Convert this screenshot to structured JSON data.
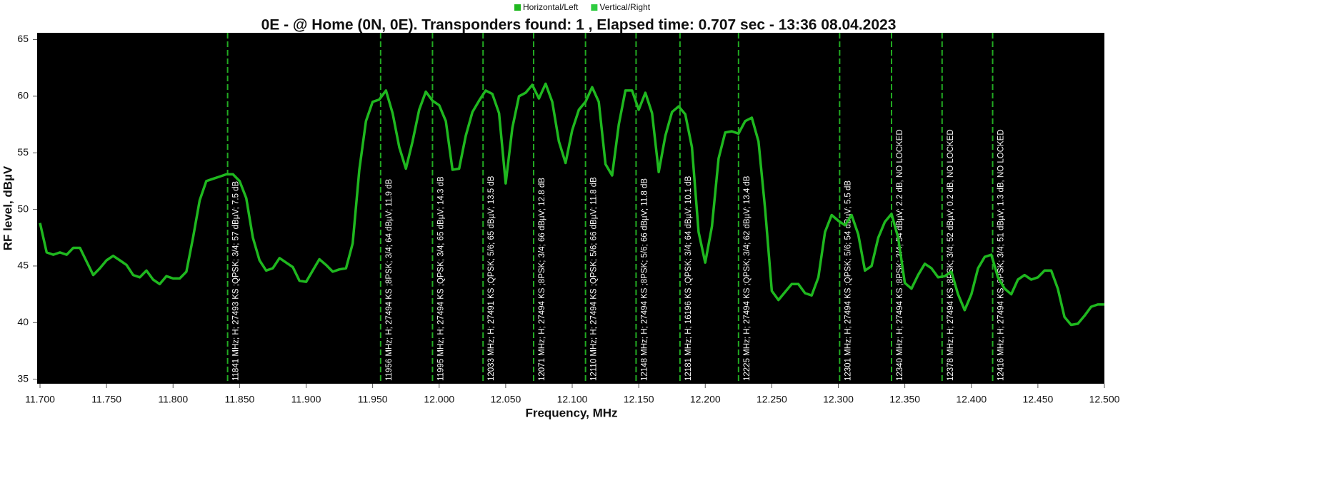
{
  "chart_data": {
    "type": "line",
    "title": "0E -  @ Home (0N, 0E). Transponders found: 1 , Elapsed time: 0.707 sec - 13:36 08.04.2023",
    "x_label": "Frequency, MHz",
    "y_label": "RF level, dBµV",
    "xlim": [
      11.7,
      12.5
    ],
    "ylim": [
      34.6,
      65.6
    ],
    "xticks": [
      {
        "value": 11.7,
        "label": "11.700"
      },
      {
        "value": 11.75,
        "label": "11.750"
      },
      {
        "value": 11.8,
        "label": "11.800"
      },
      {
        "value": 11.85,
        "label": "11.850"
      },
      {
        "value": 11.9,
        "label": "11.900"
      },
      {
        "value": 11.95,
        "label": "11.950"
      },
      {
        "value": 12.0,
        "label": "12.000"
      },
      {
        "value": 12.05,
        "label": "12.050"
      },
      {
        "value": 12.1,
        "label": "12.100"
      },
      {
        "value": 12.15,
        "label": "12.150"
      },
      {
        "value": 12.2,
        "label": "12.200"
      },
      {
        "value": 12.25,
        "label": "12.250"
      },
      {
        "value": 12.3,
        "label": "12.300"
      },
      {
        "value": 12.35,
        "label": "12.350"
      },
      {
        "value": 12.4,
        "label": "12.400"
      },
      {
        "value": 12.45,
        "label": "12.450"
      },
      {
        "value": 12.5,
        "label": "12.500"
      }
    ],
    "yticks": [
      35,
      40,
      45,
      50,
      55,
      60,
      65
    ],
    "grid": false,
    "legend": "top",
    "series": [
      {
        "name": "Horizontal/Left",
        "color": "#1fb81f",
        "x": [
          11.7,
          11.705,
          11.71,
          11.715,
          11.72,
          11.725,
          11.73,
          11.735,
          11.74,
          11.745,
          11.75,
          11.755,
          11.76,
          11.765,
          11.77,
          11.775,
          11.78,
          11.785,
          11.79,
          11.795,
          11.8,
          11.805,
          11.81,
          11.815,
          11.82,
          11.825,
          11.83,
          11.835,
          11.84,
          11.845,
          11.85,
          11.855,
          11.86,
          11.865,
          11.87,
          11.875,
          11.88,
          11.885,
          11.89,
          11.895,
          11.9,
          11.905,
          11.91,
          11.915,
          11.92,
          11.925,
          11.93,
          11.935,
          11.94,
          11.945,
          11.95,
          11.955,
          11.96,
          11.965,
          11.97,
          11.975,
          11.98,
          11.985,
          11.99,
          11.995,
          12.0,
          12.005,
          12.01,
          12.015,
          12.02,
          12.025,
          12.03,
          12.035,
          12.04,
          12.045,
          12.05,
          12.055,
          12.06,
          12.065,
          12.07,
          12.075,
          12.08,
          12.085,
          12.09,
          12.095,
          12.1,
          12.105,
          12.11,
          12.115,
          12.12,
          12.125,
          12.13,
          12.135,
          12.14,
          12.145,
          12.15,
          12.155,
          12.16,
          12.165,
          12.17,
          12.175,
          12.18,
          12.185,
          12.19,
          12.195,
          12.2,
          12.205,
          12.21,
          12.215,
          12.22,
          12.225,
          12.23,
          12.235,
          12.24,
          12.245,
          12.25,
          12.255,
          12.26,
          12.265,
          12.27,
          12.275,
          12.28,
          12.285,
          12.29,
          12.295,
          12.3,
          12.305,
          12.31,
          12.315,
          12.32,
          12.325,
          12.33,
          12.335,
          12.34,
          12.345,
          12.35,
          12.355,
          12.36,
          12.365,
          12.37,
          12.375,
          12.38,
          12.385,
          12.39,
          12.395,
          12.4,
          12.405,
          12.41,
          12.415,
          12.42,
          12.425,
          12.43,
          12.435,
          12.44,
          12.445,
          12.45,
          12.455,
          12.46,
          12.465,
          12.47,
          12.475,
          12.48,
          12.485,
          12.49,
          12.495,
          12.5
        ],
        "values": [
          48.8,
          46.2,
          46.0,
          46.2,
          46.0,
          46.6,
          46.6,
          45.4,
          44.2,
          44.8,
          45.5,
          45.9,
          45.5,
          45.1,
          44.2,
          44.0,
          44.6,
          43.8,
          43.4,
          44.1,
          43.9,
          43.9,
          44.5,
          47.5,
          50.8,
          52.5,
          52.7,
          52.9,
          53.1,
          53.1,
          52.5,
          51.0,
          47.5,
          45.5,
          44.6,
          44.8,
          45.7,
          45.3,
          44.9,
          43.7,
          43.6,
          44.6,
          45.6,
          45.1,
          44.5,
          44.7,
          44.8,
          47.0,
          53.5,
          57.8,
          59.5,
          59.7,
          60.5,
          58.5,
          55.5,
          53.6,
          56.0,
          58.8,
          60.4,
          59.6,
          59.2,
          57.8,
          53.5,
          53.6,
          56.5,
          58.6,
          59.6,
          60.5,
          60.2,
          58.5,
          52.3,
          57.2,
          60.0,
          60.3,
          61.0,
          59.8,
          61.1,
          59.5,
          56.0,
          54.1,
          57.0,
          58.8,
          59.5,
          60.8,
          59.5,
          54.0,
          53.0,
          57.5,
          60.5,
          60.5,
          58.8,
          60.3,
          58.5,
          53.3,
          56.5,
          58.6,
          59.1,
          58.4,
          55.5,
          48.0,
          45.3,
          48.5,
          54.5,
          56.8,
          56.9,
          56.7,
          57.8,
          58.1,
          56.0,
          50.0,
          42.8,
          42.0,
          42.7,
          43.4,
          43.4,
          42.6,
          42.4,
          44.0,
          48.0,
          49.5,
          49.0,
          48.6,
          49.5,
          47.8,
          44.6,
          45.0,
          47.5,
          48.9,
          49.6,
          47.5,
          43.5,
          43.0,
          44.2,
          45.2,
          44.8,
          44.0,
          44.1,
          44.5,
          42.5,
          41.1,
          42.5,
          44.8,
          45.8,
          46.0,
          44.0,
          43.0,
          42.5,
          43.8,
          44.2,
          43.8,
          44.0,
          44.6,
          44.6,
          43.0,
          40.5,
          39.8,
          39.9,
          40.6,
          41.4,
          41.6,
          41.6
        ]
      },
      {
        "name": "Vertical/Right",
        "color": "#2ecc40",
        "x": [],
        "values": []
      }
    ],
    "annotations": [
      {
        "x": 11.841,
        "text": "11841 MHz; H; 27493 KS ;QPSK; 3/4; 57 dBµV; 7.5 dB"
      },
      {
        "x": 11.956,
        "text": "11956 MHz; H; 27494 KS ;8PSK; 3/4; 64 dBµV; 11.9 dB"
      },
      {
        "x": 11.995,
        "text": "11995 MHz; H; 27494 KS ;QPSK; 3/4; 65 dBµV; 14.3 dB"
      },
      {
        "x": 12.033,
        "text": "12033 MHz; H; 27491 KS ;QPSK; 5/6; 65 dBµV; 13.5 dB"
      },
      {
        "x": 12.071,
        "text": "12071 MHz; H; 27494 KS ;8PSK; 3/4; 66 dBµV; 12.8 dB"
      },
      {
        "x": 12.11,
        "text": "12110 MHz; H; 27494 KS ;QPSK; 5/6; 66 dBµV; 11.8 dB"
      },
      {
        "x": 12.148,
        "text": "12148 MHz; H; 27494 KS ;8PSK; 5/6; 66 dBµV; 11.8 dB"
      },
      {
        "x": 12.181,
        "text": "12181 MHz; H; 16196 KS ;QPSK; 3/4; 64 dBµV; 10.1 dB"
      },
      {
        "x": 12.225,
        "text": "12225 MHz; H; 27494 KS ;QPSK; 3/4; 62 dBµV; 13.4 dB"
      },
      {
        "x": 12.301,
        "text": "12301 MHz; H; 27494 KS ;QPSK; 5/6; 54 dBµV; 5.5 dB"
      },
      {
        "x": 12.34,
        "text": "12340 MHz; H; 27494 KS ;8PSK; 3/4; 54 dBµV; 2.2 dB, NO LOCKED"
      },
      {
        "x": 12.378,
        "text": "12378 MHz; H; 27494 KS ;8PSK; 3/4; 52 dBµV; 0.2 dB, NO LOCKED"
      },
      {
        "x": 12.416,
        "text": "12416 MHz; H; 27494 KS ;8PSK; 3/4; 51 dBµV; 1.3 dB, NO LOCKED"
      }
    ]
  }
}
